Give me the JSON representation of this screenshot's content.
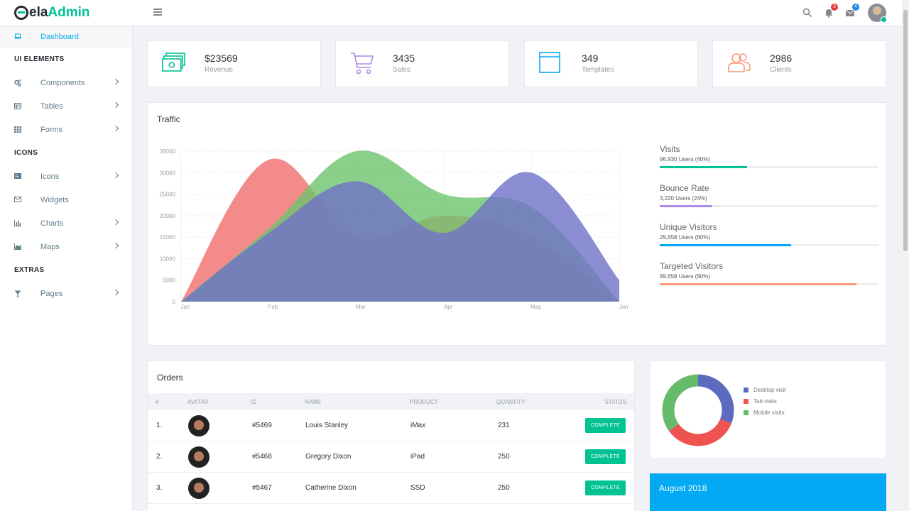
{
  "app": {
    "logo_prefix": "ela",
    "logo_suffix": "Admin"
  },
  "header": {
    "notifications_count": "3",
    "messages_count": "4"
  },
  "sidebar": {
    "dashboard": "Dashboard",
    "ui_elements_heading": "UI ELEMENTS",
    "components": "Components",
    "tables": "Tables",
    "forms": "Forms",
    "icons_heading": "ICONS",
    "icons": "Icons",
    "widgets": "Widgets",
    "charts": "Charts",
    "maps": "Maps",
    "extras_heading": "EXTRAS",
    "pages": "Pages"
  },
  "stats": [
    {
      "value": "$23569",
      "label": "Revenue",
      "color": "#00c292"
    },
    {
      "value": "3435",
      "label": "Sales",
      "color": "#ab8ce4"
    },
    {
      "value": "349",
      "label": "Templates",
      "color": "#03a9f3"
    },
    {
      "value": "2986",
      "label": "Clients",
      "color": "#fb9678"
    }
  ],
  "traffic": {
    "title": "Traffic",
    "progress": [
      {
        "title": "Visits",
        "sub": "96,930 Users (40%)",
        "percent": 40,
        "color": "#00c292"
      },
      {
        "title": "Bounce Rate",
        "sub": "3,220 Users (24%)",
        "percent": 24,
        "color": "#ab8ce4"
      },
      {
        "title": "Unique Visitors",
        "sub": "29,658 Users (60%)",
        "percent": 60,
        "color": "#03a9f3"
      },
      {
        "title": "Targeted Visitors",
        "sub": "99,658 Users (90%)",
        "percent": 90,
        "color": "#fb9678"
      }
    ]
  },
  "chart_data": [
    {
      "type": "area",
      "categories": [
        "Jan",
        "Feb",
        "Mar",
        "Apr",
        "May",
        "Jun"
      ],
      "ylim": [
        0,
        35000
      ],
      "yticks": [
        "0",
        "5000",
        "10000",
        "15000",
        "20000",
        "25000",
        "30000",
        "35000"
      ],
      "grid": true,
      "series": [
        {
          "values": [
            0,
            33000,
            15000,
            20000,
            15000,
            0
          ],
          "color": "#f16e6e"
        },
        {
          "values": [
            0,
            17000,
            35000,
            25000,
            22000,
            0
          ],
          "color": "#6dc46d"
        },
        {
          "values": [
            0,
            16000,
            28000,
            16000,
            30000,
            5000
          ],
          "color": "#6f72c8"
        }
      ]
    },
    {
      "type": "pie",
      "categories": [
        "Desktop visit",
        "Tab visits",
        "Mobile visits"
      ],
      "values": [
        31,
        34,
        35
      ],
      "colors": [
        "#5c6bc0",
        "#ef5350",
        "#66bb6a"
      ],
      "legend": "right"
    }
  ],
  "orders": {
    "title": "Orders",
    "columns": [
      "#",
      "AVATAR",
      "ID",
      "NAME",
      "PRODUCT",
      "QUANTITY",
      "STATUS"
    ],
    "rows": [
      {
        "num": "1.",
        "id": "#5469",
        "name": "Louis Stanley",
        "product": "iMax",
        "quantity": "231",
        "status": "COMPLETE"
      },
      {
        "num": "2.",
        "id": "#5468",
        "name": "Gregory Dixon",
        "product": "iPad",
        "quantity": "250",
        "status": "COMPLETE"
      },
      {
        "num": "3.",
        "id": "#5467",
        "name": "Catherine Dixon",
        "product": "SSD",
        "quantity": "250",
        "status": "COMPLETE"
      }
    ]
  },
  "calendar": {
    "title": "August 2018"
  }
}
